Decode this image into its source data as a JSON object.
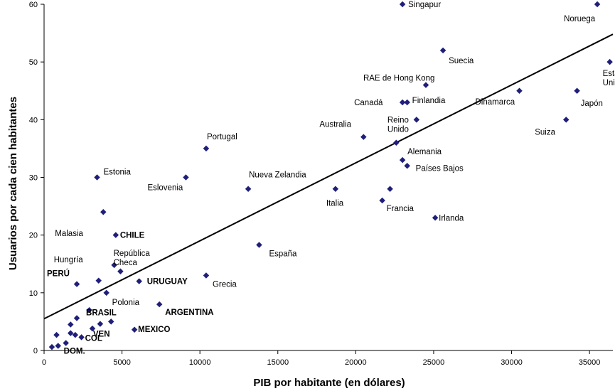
{
  "chart_data": {
    "type": "scatter",
    "title": "",
    "xlabel": "PIB por habitante (en dólares)",
    "ylabel": "Usuarios por cada cien habitantes",
    "xlim": [
      0,
      36500
    ],
    "ylim": [
      0,
      60
    ],
    "xticks": [
      "0",
      "5000",
      "10000",
      "15000",
      "20000",
      "25000",
      "30000",
      "35000"
    ],
    "yticks": [
      "0",
      "10",
      "20",
      "30",
      "40",
      "50",
      "60"
    ],
    "grid": false,
    "legend": "none",
    "marker_color": "#1f1f7a",
    "trendline": {
      "color": "#000000",
      "x": [
        0,
        36500
      ],
      "y": [
        5.5,
        54.8
      ]
    },
    "points": [
      {
        "x": 23000,
        "y": 60,
        "label": "Singapur"
      },
      {
        "x": 35500,
        "y": 60,
        "label": "Noruega"
      },
      {
        "x": 25600,
        "y": 52,
        "label": "Suecia"
      },
      {
        "x": 36300,
        "y": 50,
        "label": "Estados\nUnidos"
      },
      {
        "x": 24500,
        "y": 46,
        "label": "RAE de Hong Kong"
      },
      {
        "x": 23000,
        "y": 43,
        "label": "Canadá"
      },
      {
        "x": 23300,
        "y": 43,
        "label": "Finlandia"
      },
      {
        "x": 30500,
        "y": 45,
        "label": "Dinamarca"
      },
      {
        "x": 34200,
        "y": 45,
        "label": "Japón"
      },
      {
        "x": 23900,
        "y": 40,
        "label": "Reino\nUnido"
      },
      {
        "x": 33500,
        "y": 40,
        "label": "Suiza"
      },
      {
        "x": 20500,
        "y": 37,
        "label": "Australia"
      },
      {
        "x": 22600,
        "y": 36,
        "label": ""
      },
      {
        "x": 23000,
        "y": 33,
        "label": "Alemania"
      },
      {
        "x": 23300,
        "y": 32,
        "label": "Países Bajos"
      },
      {
        "x": 10400,
        "y": 35,
        "label": "Portugal"
      },
      {
        "x": 3400,
        "y": 30,
        "label": "Estonia"
      },
      {
        "x": 9100,
        "y": 30,
        "label": "Eslovenia"
      },
      {
        "x": 13100,
        "y": 28,
        "label": "Nueva Zelandia"
      },
      {
        "x": 18700,
        "y": 28,
        "label": "Italia"
      },
      {
        "x": 22200,
        "y": 28,
        "label": ""
      },
      {
        "x": 21700,
        "y": 26,
        "label": "Francia"
      },
      {
        "x": 25100,
        "y": 23,
        "label": "Irlanda"
      },
      {
        "x": 3800,
        "y": 24,
        "label": "Malasia"
      },
      {
        "x": 4600,
        "y": 20,
        "label": "CHILE",
        "bold": true
      },
      {
        "x": 13800,
        "y": 18.3,
        "label": "España"
      },
      {
        "x": 4500,
        "y": 14.8,
        "label": "República\nCheca"
      },
      {
        "x": 4900,
        "y": 13.7,
        "label": ""
      },
      {
        "x": 3500,
        "y": 12.1,
        "label": "Hungría"
      },
      {
        "x": 10400,
        "y": 13,
        "label": "Grecia"
      },
      {
        "x": 6100,
        "y": 12,
        "label": "URUGUAY",
        "bold": true
      },
      {
        "x": 2100,
        "y": 11.5,
        "label": "PERÚ",
        "bold": true
      },
      {
        "x": 4000,
        "y": 10,
        "label": "Polonia"
      },
      {
        "x": 7400,
        "y": 8,
        "label": "ARGENTINA",
        "bold": true
      },
      {
        "x": 2900,
        "y": 7,
        "label": ""
      },
      {
        "x": 2100,
        "y": 5.6,
        "label": "BRASIL",
        "bold": true
      },
      {
        "x": 4300,
        "y": 5,
        "label": ""
      },
      {
        "x": 1700,
        "y": 4.5,
        "label": ""
      },
      {
        "x": 3600,
        "y": 4.6,
        "label": "VEN",
        "bold": true
      },
      {
        "x": 3100,
        "y": 3.8,
        "label": ""
      },
      {
        "x": 5800,
        "y": 3.6,
        "label": "MEXICO",
        "bold": true
      },
      {
        "x": 1700,
        "y": 3,
        "label": ""
      },
      {
        "x": 2000,
        "y": 2.7,
        "label": ""
      },
      {
        "x": 800,
        "y": 2.7,
        "label": ""
      },
      {
        "x": 2400,
        "y": 2.3,
        "label": "COL",
        "bold": true
      },
      {
        "x": 1400,
        "y": 1.3,
        "label": "DOM.",
        "bold": true
      },
      {
        "x": 900,
        "y": 0.8,
        "label": ""
      },
      {
        "x": 500,
        "y": 0.6,
        "label": ""
      }
    ]
  }
}
